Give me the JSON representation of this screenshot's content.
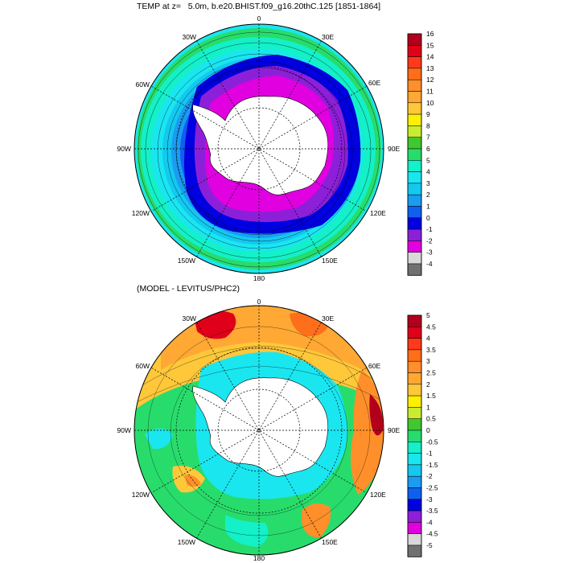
{
  "top_panel": {
    "title": "TEMP at z=   5.0m, b.e20.BHIST.f09_g16.20thC.125 [1851-1864]",
    "map_labels": {
      "lon_0": "0",
      "lon_30e": "30E",
      "lon_60e": "60E",
      "lon_90e": "90E",
      "lon_120e": "120E",
      "lon_150e": "150E",
      "lon_180": "180",
      "lon_150w": "150W",
      "lon_120w": "120W",
      "lon_90w": "90W",
      "lon_60w": "60W",
      "lon_30w": "30W"
    },
    "colorbar": {
      "labels": [
        "16",
        "15",
        "14",
        "13",
        "12",
        "11",
        "10",
        "9",
        "8",
        "7",
        "6",
        "5",
        "4",
        "3",
        "2",
        "1",
        "0",
        "-1",
        "-2",
        "-3",
        "-4"
      ],
      "colors": [
        "#b2001c",
        "#e0001a",
        "#ff3a1a",
        "#ff6e1a",
        "#ff8f2a",
        "#ffa834",
        "#ffc83a",
        "#fff000",
        "#c8ec30",
        "#40c830",
        "#28dc6c",
        "#14f0c8",
        "#1ae6f0",
        "#14c8f0",
        "#1a9cf0",
        "#1060f0",
        "#0000e0",
        "#8c20d8",
        "#e000e0",
        "#d8d8d8",
        "#707070"
      ]
    }
  },
  "bottom_panel": {
    "title": "(MODEL - LEVITUS/PHC2)",
    "map_labels": {
      "lon_0": "0",
      "lon_30e": "30E",
      "lon_60e": "60E",
      "lon_90e": "90E",
      "lon_120e": "120E",
      "lon_150e": "150E",
      "lon_180": "180",
      "lon_150w": "150W",
      "lon_120w": "120W",
      "lon_90w": "90W",
      "lon_60w": "60W",
      "lon_30w": "30W"
    },
    "colorbar": {
      "labels": [
        "5",
        "4.5",
        "4",
        "3.5",
        "3",
        "2.5",
        "2",
        "1.5",
        "1",
        "0.5",
        "0",
        "-0.5",
        "-1",
        "-1.5",
        "-2",
        "-2.5",
        "-3",
        "-3.5",
        "-4",
        "-4.5",
        "-5"
      ],
      "colors": [
        "#b2001c",
        "#e0001a",
        "#ff3a1a",
        "#ff6e1a",
        "#ff8f2a",
        "#ffa834",
        "#ffc83a",
        "#fff000",
        "#c8ec30",
        "#40c830",
        "#28dc6c",
        "#14f0c8",
        "#1ae6f0",
        "#14c8f0",
        "#1a9cf0",
        "#1060f0",
        "#0000e0",
        "#8c20d8",
        "#e000e0",
        "#d8d8d8",
        "#707070"
      ]
    }
  }
}
